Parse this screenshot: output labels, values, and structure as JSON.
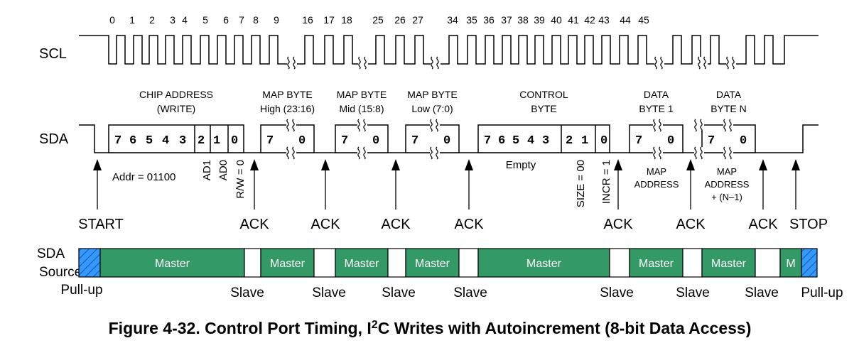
{
  "signals": {
    "scl": "SCL",
    "sda": "SDA",
    "source_line1": "SDA",
    "source_line2": "Source"
  },
  "clock_labels": [
    "0",
    "1",
    "2",
    "3",
    "4",
    "5",
    "6",
    "7",
    "8",
    "9",
    "16",
    "17",
    "18",
    "25",
    "26",
    "27",
    "34",
    "35",
    "36",
    "37",
    "38",
    "39",
    "40",
    "41",
    "42",
    "43",
    "44",
    "45"
  ],
  "byte_headers": [
    [
      "CHIP ADDRESS",
      "(WRITE)"
    ],
    [
      "MAP BYTE",
      "High (23:16)"
    ],
    [
      "MAP BYTE",
      "Mid (15:8)"
    ],
    [
      "MAP BYTE",
      "Low (7:0)"
    ],
    [
      "CONTROL",
      "BYTE"
    ],
    [
      "DATA",
      "BYTE 1"
    ],
    [
      "DATA",
      "BYTE N"
    ]
  ],
  "byte_bits": [
    [
      "7",
      "6",
      "5",
      "4",
      "3",
      "2",
      "1",
      "0"
    ],
    [
      "7",
      "0"
    ],
    [
      "7",
      "0"
    ],
    [
      "7",
      "0"
    ],
    [
      "7",
      "6",
      "5",
      "4",
      "3",
      "2",
      "1",
      "0"
    ],
    [
      "7",
      "0"
    ],
    [
      "7",
      "0"
    ]
  ],
  "annotations": {
    "addr": "Addr = 01100",
    "ad1": "AD1",
    "ad0": "AD0",
    "rw": "R/W = 0",
    "empty": "Empty",
    "size": "SIZE = 00",
    "incr": "INCR = 1",
    "map_address": [
      "MAP",
      "ADDRESS"
    ],
    "map_address_n": [
      "MAP",
      "ADDRESS",
      "+ (N–1)"
    ]
  },
  "events": [
    "START",
    "ACK",
    "ACK",
    "ACK",
    "ACK",
    "ACK",
    "ACK",
    "ACK",
    "STOP"
  ],
  "source_segments": [
    "",
    "Master",
    "",
    "Master",
    "",
    "Master",
    "",
    "Master",
    "",
    "Master",
    "",
    "Master",
    "",
    "Master",
    "",
    "M",
    ""
  ],
  "source_labels": {
    "pullup_left": "Pull-up",
    "slave": [
      "Slave",
      "Slave",
      "Slave",
      "Slave",
      "Slave",
      "Slave",
      "Slave"
    ],
    "pullup_right": "Pull-up"
  },
  "caption": {
    "prefix": "Figure 4-32. Control Port Timing, I",
    "sup": "2",
    "suffix": "C Writes with Autoincrement (8-bit Data Access)"
  },
  "colors": {
    "master": "#339966",
    "pullup": "#3399ff",
    "slave": "#ffffff"
  }
}
